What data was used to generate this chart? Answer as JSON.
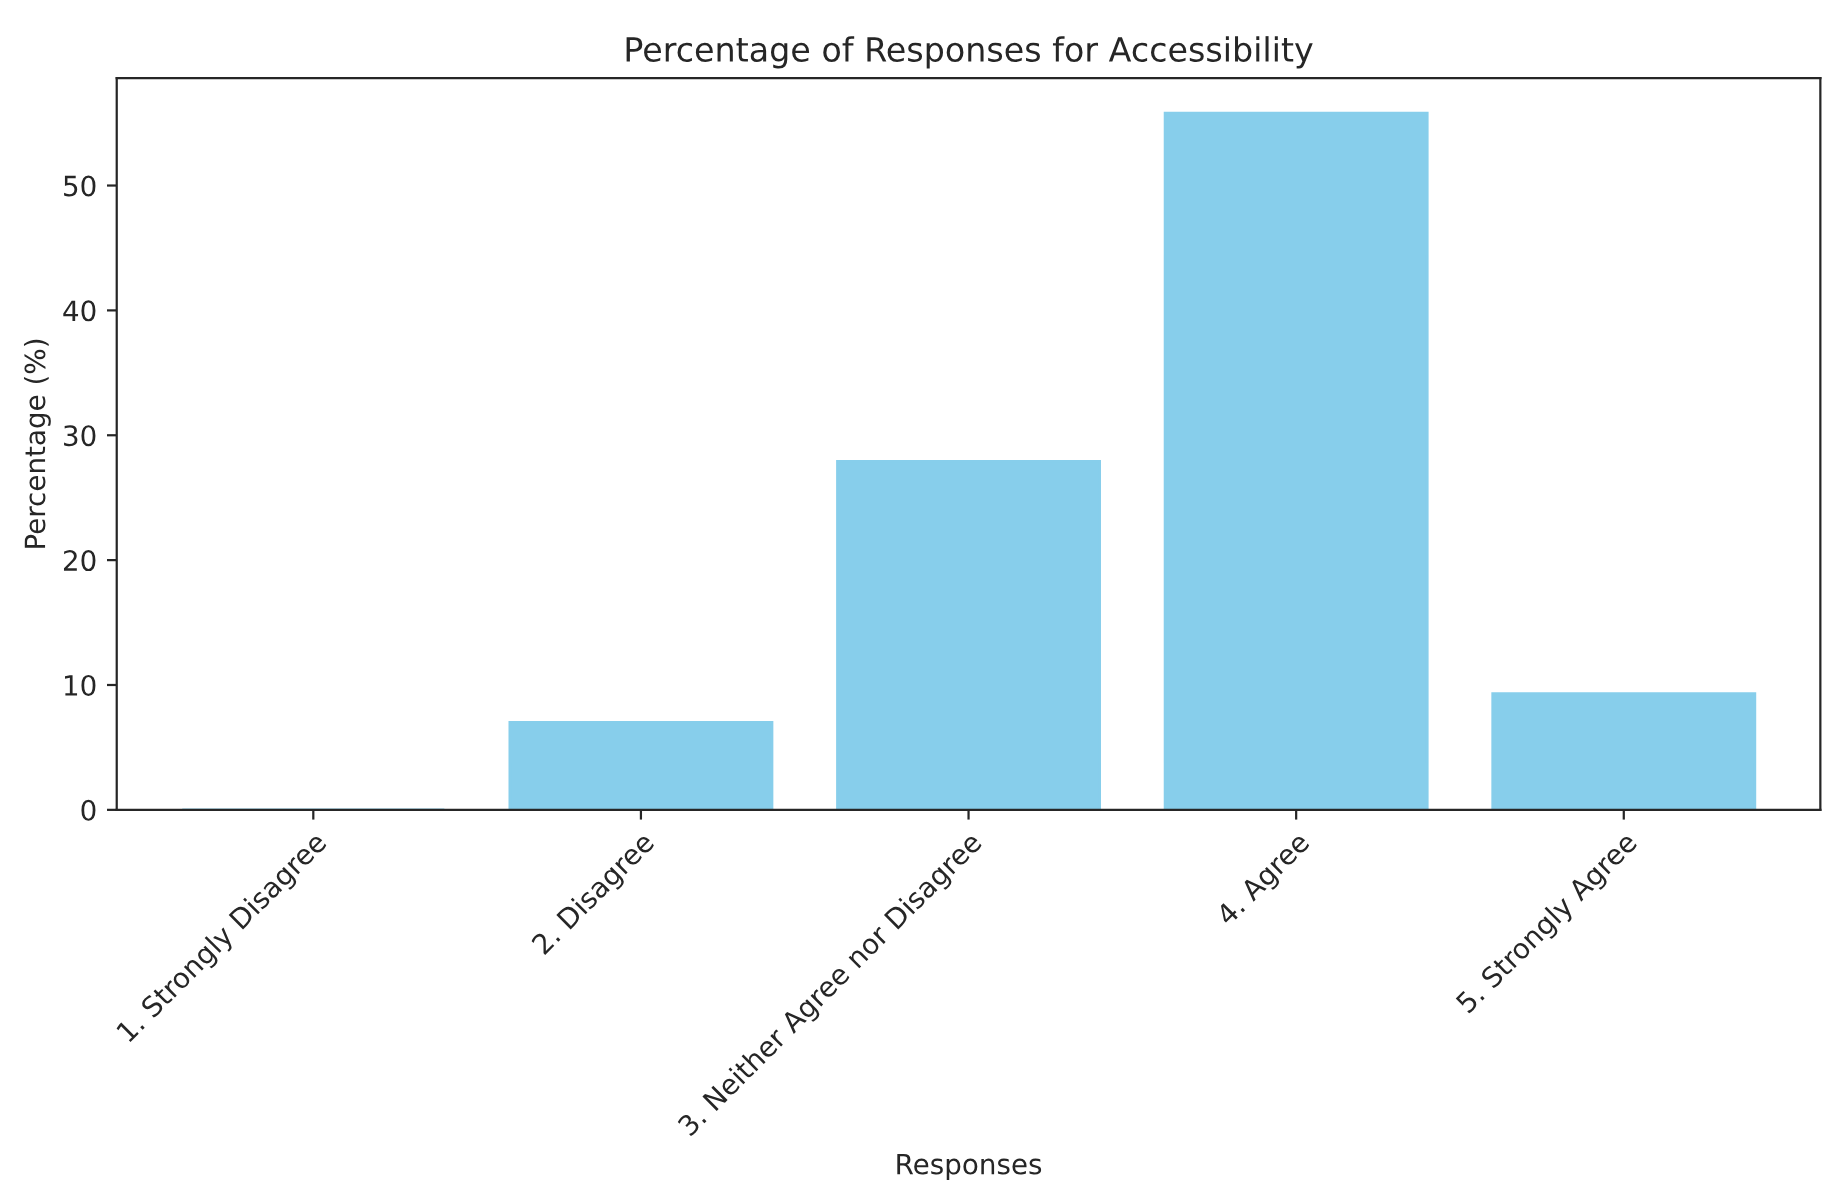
{
  "chart_data": {
    "type": "bar",
    "title": "Percentage of Responses for Accessibility",
    "xlabel": "Responses",
    "ylabel": "Percentage (%)",
    "categories": [
      "1. Strongly Disagree",
      "2. Disagree",
      "3. Neither Agree nor Disagree",
      "4. Agree",
      "5. Strongly Agree"
    ],
    "values": [
      0,
      7.0,
      27.9,
      55.8,
      9.3
    ],
    "color": "#87ceeb",
    "ylim": [
      0,
      58.6
    ],
    "yticks": [
      0,
      10,
      20,
      30,
      40,
      50
    ],
    "grid": false,
    "legend": false
  }
}
